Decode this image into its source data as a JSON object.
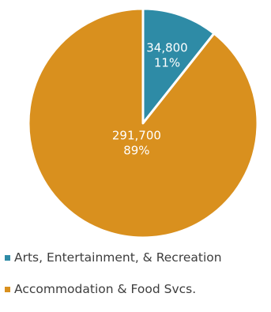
{
  "chart_data": {
    "type": "pie",
    "slices": [
      {
        "name": "Arts, Entertainment, & Recreation",
        "value": 34800,
        "value_label": "34,800",
        "percent_label": "11%",
        "color": "#2e8ba6"
      },
      {
        "name": "Accommodation & Food Svcs.",
        "value": 291700,
        "value_label": "291,700",
        "percent_label": "89%",
        "color": "#d9901e"
      }
    ],
    "legend_position": "bottom",
    "start_angle": "top, clockwise"
  }
}
